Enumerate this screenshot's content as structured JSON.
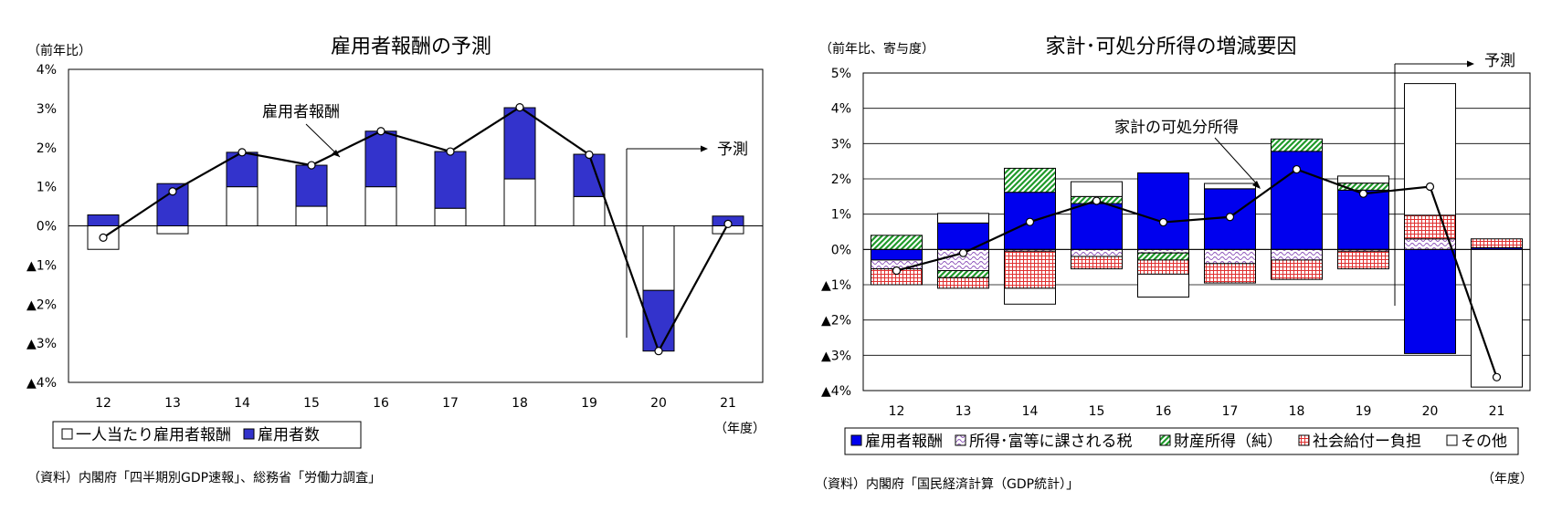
{
  "chart_data": [
    {
      "type": "bar",
      "stacked": true,
      "title": "雇用者報酬の予測",
      "unit_label": "（前年比）",
      "x_unit": "（年度）",
      "source": "（資料）内閣府「四半期別GDP速報」、総務省「労働力調査」",
      "categories": [
        "12",
        "13",
        "14",
        "15",
        "16",
        "17",
        "18",
        "19",
        "20",
        "21"
      ],
      "ylim": [
        -4,
        4
      ],
      "yticks": [
        {
          "v": 4,
          "label": "4%"
        },
        {
          "v": 3,
          "label": "3%"
        },
        {
          "v": 2,
          "label": "2%"
        },
        {
          "v": 1,
          "label": "1%"
        },
        {
          "v": 0,
          "label": "0%"
        },
        {
          "v": -1,
          "label": "▲1%"
        },
        {
          "v": -2,
          "label": "▲2%"
        },
        {
          "v": -3,
          "label": "▲3%"
        },
        {
          "v": -4,
          "label": "▲4%"
        }
      ],
      "series": [
        {
          "name": "一人当たり雇用者報酬",
          "color": "#ffffff",
          "values": [
            -0.6,
            -0.2,
            1.0,
            0.5,
            1.0,
            0.45,
            1.2,
            0.75,
            -1.65,
            -0.2
          ]
        },
        {
          "name": "雇用者数",
          "color": "#3333cc",
          "values": [
            0.28,
            1.08,
            0.88,
            1.05,
            1.42,
            1.45,
            1.82,
            1.08,
            -1.55,
            0.25
          ]
        }
      ],
      "line": {
        "name": "雇用者報酬",
        "values": [
          -0.3,
          0.88,
          1.88,
          1.55,
          2.42,
          1.9,
          3.03,
          1.82,
          -3.2,
          0.05
        ]
      },
      "annotations": {
        "line_label": "雇用者報酬",
        "forecast_label": "予測",
        "forecast_start": "20"
      },
      "legend": "bottom-left",
      "grid": false
    },
    {
      "type": "bar",
      "stacked": true,
      "title": "家計･可処分所得の増減要因",
      "unit_label": "（前年比、寄与度）",
      "x_unit": "（年度）",
      "source": "（資料）内閣府「国民経済計算（GDP統計）」",
      "categories": [
        "12",
        "13",
        "14",
        "15",
        "16",
        "17",
        "18",
        "19",
        "20",
        "21"
      ],
      "ylim": [
        -4,
        5
      ],
      "yticks": [
        {
          "v": 5,
          "label": "5%"
        },
        {
          "v": 4,
          "label": "4%"
        },
        {
          "v": 3,
          "label": "3%"
        },
        {
          "v": 2,
          "label": "2%"
        },
        {
          "v": 1,
          "label": "1%"
        },
        {
          "v": 0,
          "label": "0%"
        },
        {
          "v": -1,
          "label": "▲1%"
        },
        {
          "v": -2,
          "label": "▲2%"
        },
        {
          "v": -3,
          "label": "▲3%"
        },
        {
          "v": -4,
          "label": "▲4%"
        }
      ],
      "series": [
        {
          "name": "雇用者報酬",
          "pattern": "solid-blue",
          "values": [
            -0.3,
            0.75,
            1.62,
            1.3,
            2.17,
            1.72,
            2.78,
            1.68,
            -2.95,
            0.05
          ]
        },
        {
          "name": "所得･富等に課される税",
          "pattern": "wave-purple",
          "values": [
            -0.25,
            -0.6,
            -0.05,
            -0.2,
            -0.1,
            -0.4,
            -0.3,
            -0.05,
            0.3,
            0.0
          ]
        },
        {
          "name": "財産所得（純）",
          "pattern": "diagonal-green",
          "values": [
            0.4,
            -0.2,
            0.68,
            0.2,
            -0.2,
            0.0,
            0.35,
            0.2,
            0.0,
            0.0
          ]
        },
        {
          "name": "社会給付ー負担",
          "pattern": "grid-red",
          "values": [
            -0.45,
            -0.3,
            -1.05,
            -0.35,
            -0.4,
            -0.55,
            -0.55,
            -0.5,
            0.67,
            0.25
          ]
        },
        {
          "name": "その他",
          "pattern": "white",
          "values": [
            0.0,
            0.27,
            -0.45,
            0.42,
            -0.65,
            0.15,
            0.0,
            0.2,
            3.73,
            -3.9
          ]
        }
      ],
      "line": {
        "name": "家計の可処分所得",
        "values": [
          -0.6,
          -0.1,
          0.78,
          1.38,
          0.77,
          0.92,
          2.27,
          1.58,
          1.78,
          -3.62
        ]
      },
      "annotations": {
        "line_label": "家計の可処分所得",
        "forecast_label": "予測",
        "forecast_start": "20"
      },
      "legend": "bottom",
      "grid": true
    }
  ]
}
